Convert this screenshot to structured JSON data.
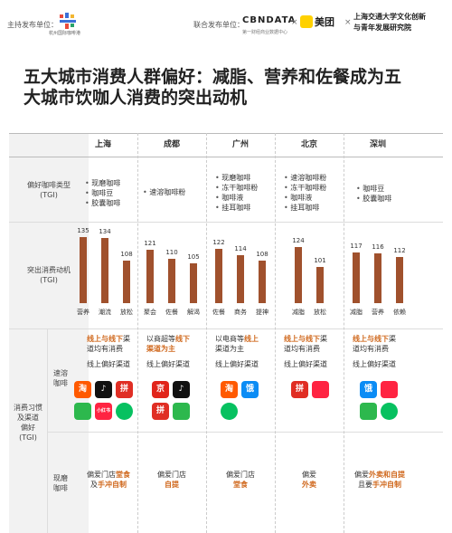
{
  "header": {
    "host_label": "主持发布单位：",
    "logo_left_sub": "杭州国际咖啡港",
    "copublisher_label": "联合发布单位：",
    "cbndata": "CBNDATA",
    "cbndata_sub": "第一财经商业数据中心",
    "x": "×",
    "meituan": "美团",
    "sjtu_line1": "上海交通大学文化创新",
    "sjtu_line2": "与青年发展研究院"
  },
  "title_line1": "五大城市消费人群偏好：减脂、营养和佐餐成为五",
  "title_line2": "大城市饮咖人消费的突出动机",
  "cities": [
    "上海",
    "成都",
    "广州",
    "北京",
    "深圳"
  ],
  "rows": {
    "type_label_1": "偏好咖啡类型",
    "type_label_2": "(TGI)",
    "motive_label_1": "突出消费动机",
    "motive_label_2": "(TGI)",
    "habit_label_1": "消费习惯",
    "habit_label_2": "及渠道",
    "habit_label_3": "偏好",
    "habit_label_4": "(TGI)",
    "instant_label_1": "速溶",
    "instant_label_2": "咖啡",
    "fresh_label_1": "现磨",
    "fresh_label_2": "咖啡"
  },
  "types": [
    [
      "现磨咖啡",
      "咖啡豆",
      "胶囊咖啡"
    ],
    [
      "速溶咖啡粉"
    ],
    [
      "现磨咖啡",
      "冻干咖啡粉",
      "咖啡液",
      "挂耳咖啡"
    ],
    [
      "速溶咖啡粉",
      "冻干咖啡粉",
      "咖啡液",
      "挂耳咖啡"
    ],
    [
      "咖啡豆",
      "胶囊咖啡"
    ]
  ],
  "chart_data": {
    "type": "bar",
    "groups": [
      {
        "city": "上海",
        "categories": [
          "营养",
          "潮流",
          "放松"
        ],
        "values": [
          135,
          134,
          108
        ]
      },
      {
        "city": "成都",
        "categories": [
          "聚会",
          "佐餐",
          "解渴"
        ],
        "values": [
          121,
          110,
          105
        ]
      },
      {
        "city": "广州",
        "categories": [
          "佐餐",
          "商务",
          "提神"
        ],
        "values": [
          122,
          114,
          108
        ]
      },
      {
        "city": "北京",
        "categories": [
          "减脂",
          "放松"
        ],
        "values": [
          124,
          101
        ]
      },
      {
        "city": "深圳",
        "categories": [
          "减脂",
          "营养",
          "依赖"
        ],
        "values": [
          117,
          116,
          112
        ]
      }
    ],
    "ylim": [
      0,
      140
    ]
  },
  "instant": [
    {
      "p1": [
        {
          "t": "线上与线下",
          "h": true
        },
        {
          "t": "渠",
          "h": false
        }
      ],
      "p2": "道均有消费",
      "p3": "线上偏好渠道"
    },
    {
      "p1": [
        {
          "t": "以商超等",
          "h": false
        },
        {
          "t": "线下",
          "h": true
        }
      ],
      "p2": "渠道为主",
      "p2h": true,
      "p3": "线上偏好渠道"
    },
    {
      "p1": [
        {
          "t": "以电商等",
          "h": false
        },
        {
          "t": "线上",
          "h": true
        }
      ],
      "p2": "渠道为主",
      "p2h": false,
      "p3": "线上偏好渠道"
    },
    {
      "p1": [
        {
          "t": "线上与线下",
          "h": true
        },
        {
          "t": "渠",
          "h": false
        }
      ],
      "p2": "道均有消费",
      "p3": "线上偏好渠道"
    },
    {
      "p1": [
        {
          "t": "线上与线下",
          "h": true
        },
        {
          "t": "渠",
          "h": false
        }
      ],
      "p2": "道均有消费",
      "p3": "线上偏好渠道"
    }
  ],
  "fresh": [
    {
      "l1a": "偏爱门店",
      "l1b": "堂食",
      "l2a": "及",
      "l2b": "手冲自制"
    },
    {
      "l1a": "偏爱门店",
      "l1b": "",
      "l2a": "",
      "l2b": "自提"
    },
    {
      "l1a": "偏爱门店",
      "l1b": "",
      "l2a": "",
      "l2b": "堂食"
    },
    {
      "l1a": "偏爱",
      "l1b": "",
      "l2a": "",
      "l2b": "外卖"
    },
    {
      "l1a": "偏爱",
      "l1b": "外卖和自提",
      "l2a": "且要",
      "l2b": "手冲自制"
    }
  ],
  "icons": {
    "taobao": "淘",
    "douyin": "♪",
    "jd": "京",
    "xhs": "小红书",
    "pdd": "拼",
    "ele": "饿"
  },
  "colors": {
    "bar": "#a0512d",
    "highlight": "#d0691e"
  }
}
